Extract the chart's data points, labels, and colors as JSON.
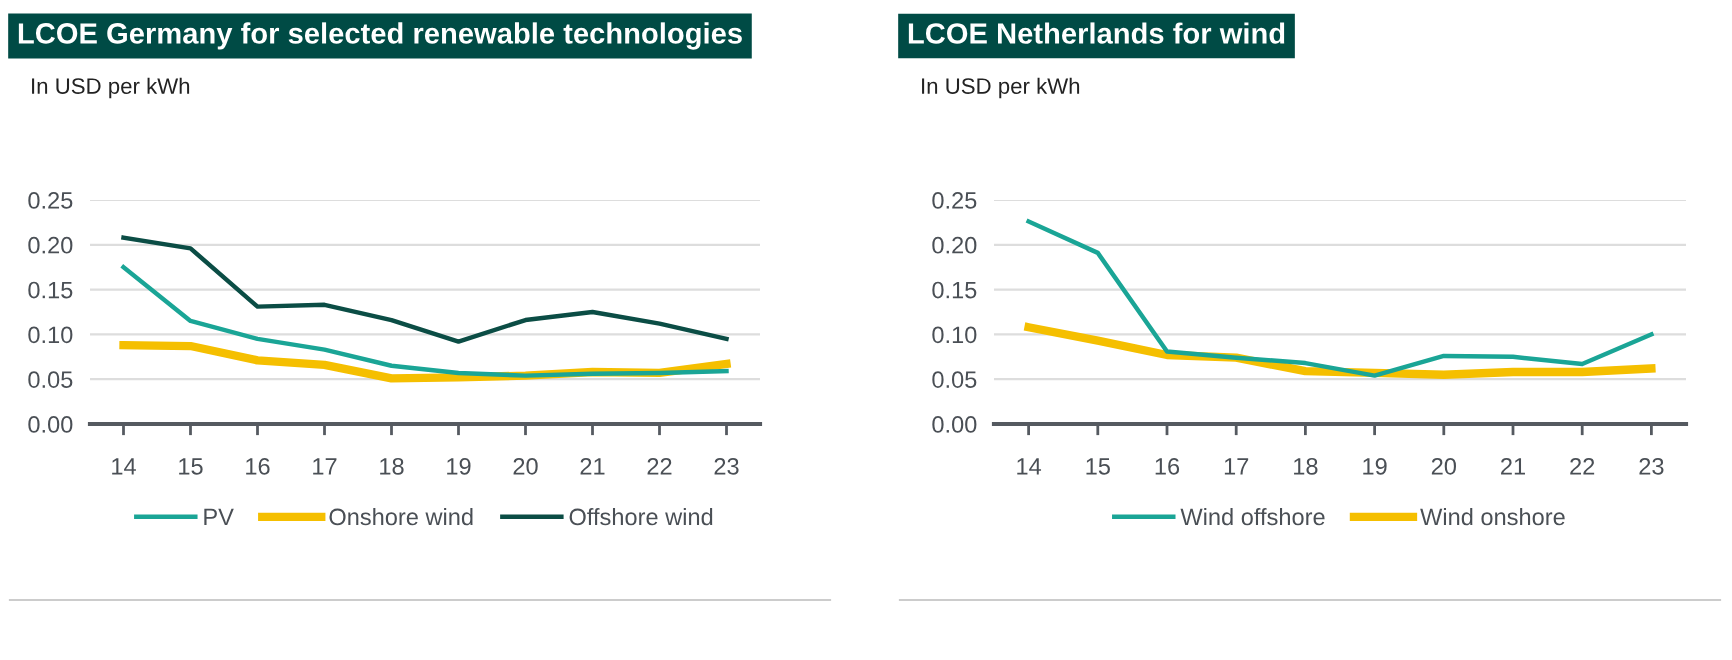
{
  "chart_data": [
    {
      "type": "line",
      "title": "LCOE Germany for selected renewable technologies",
      "ylabel": "In USD per kWh",
      "categories": [
        "14",
        "15",
        "16",
        "17",
        "18",
        "19",
        "20",
        "21",
        "22",
        "23"
      ],
      "ylim": [
        0,
        0.25
      ],
      "yticks": [
        {
          "value": 0,
          "label": "0.00"
        },
        {
          "value": 0.05,
          "label": "0.05"
        },
        {
          "value": 0.1,
          "label": "0.10"
        },
        {
          "value": 0.15,
          "label": "0.15"
        },
        {
          "value": 0.2,
          "label": "0.20"
        },
        {
          "value": 0.25,
          "label": "0.25"
        }
      ],
      "grid": "y",
      "legend": "bottom",
      "series": [
        {
          "name": "PV",
          "color": "#1aa596",
          "values": [
            0.175,
            0.115,
            0.095,
            0.083,
            0.065,
            0.057,
            0.054,
            0.056,
            0.057,
            0.059
          ]
        },
        {
          "name": "Onshore wind",
          "color": "#f5bf00",
          "values": [
            0.088,
            0.087,
            0.071,
            0.066,
            0.051,
            0.052,
            0.054,
            0.058,
            0.057,
            0.067
          ]
        },
        {
          "name": "Offshore wind",
          "color": "#0b4d45",
          "values": [
            0.208,
            0.196,
            0.131,
            0.133,
            0.116,
            0.092,
            0.116,
            0.125,
            0.112,
            0.095
          ]
        }
      ]
    },
    {
      "type": "line",
      "title": "LCOE Netherlands for wind",
      "ylabel": "In USD per kWh",
      "categories": [
        "14",
        "15",
        "16",
        "17",
        "18",
        "19",
        "20",
        "21",
        "22",
        "23"
      ],
      "ylim": [
        0,
        0.25
      ],
      "yticks": [
        {
          "value": 0,
          "label": "0.00"
        },
        {
          "value": 0.05,
          "label": "0.05"
        },
        {
          "value": 0.1,
          "label": "0.10"
        },
        {
          "value": 0.15,
          "label": "0.15"
        },
        {
          "value": 0.2,
          "label": "0.20"
        },
        {
          "value": 0.25,
          "label": "0.25"
        }
      ],
      "grid": "y",
      "legend": "bottom",
      "series": [
        {
          "name": "Wind offshore",
          "color": "#1aa596",
          "values": [
            0.226,
            0.191,
            0.081,
            0.074,
            0.068,
            0.054,
            0.076,
            0.075,
            0.067,
            0.1
          ]
        },
        {
          "name": "Wind onshore",
          "color": "#f5bf00",
          "values": [
            0.108,
            0.093,
            0.077,
            0.074,
            0.059,
            0.057,
            0.055,
            0.058,
            0.058,
            0.062
          ]
        }
      ]
    }
  ]
}
